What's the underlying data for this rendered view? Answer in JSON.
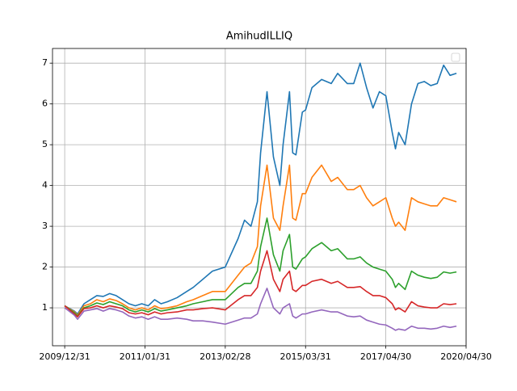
{
  "chart_data": {
    "type": "line",
    "title": "AmihudILLIQ",
    "x": [
      0,
      3,
      4,
      6,
      8,
      10,
      12,
      14,
      16,
      18,
      20,
      22,
      24,
      26,
      28,
      30,
      32,
      35,
      38,
      40,
      43,
      46,
      50,
      54,
      56,
      58,
      60,
      61,
      63,
      65,
      67,
      68,
      70,
      71,
      72,
      74,
      75,
      77,
      80,
      83,
      85,
      88,
      90,
      92,
      94,
      96,
      98,
      100,
      102,
      103,
      104,
      106,
      108,
      110,
      112,
      114,
      116,
      118,
      120,
      122
    ],
    "series": [
      {
        "color": "#1f77b4",
        "values": [
          1.05,
          0.92,
          0.85,
          1.1,
          1.2,
          1.3,
          1.28,
          1.35,
          1.3,
          1.2,
          1.1,
          1.05,
          1.1,
          1.05,
          1.2,
          1.1,
          1.15,
          1.25,
          1.4,
          1.5,
          1.7,
          1.9,
          2.0,
          2.7,
          3.15,
          3.0,
          3.6,
          4.8,
          6.3,
          4.7,
          4.0,
          5.0,
          6.3,
          4.8,
          4.75,
          5.8,
          5.85,
          6.4,
          6.6,
          6.5,
          6.75,
          6.5,
          6.5,
          7.0,
          6.4,
          5.9,
          6.3,
          6.2,
          5.3,
          4.9,
          5.3,
          5.0,
          6.0,
          6.5,
          6.55,
          6.45,
          6.5,
          6.95,
          6.7,
          6.75
        ]
      },
      {
        "color": "#ff7f0e",
        "values": [
          1.05,
          0.9,
          0.82,
          1.05,
          1.1,
          1.2,
          1.15,
          1.22,
          1.18,
          1.1,
          1.0,
          0.95,
          1.0,
          0.95,
          1.05,
          0.98,
          1.0,
          1.05,
          1.15,
          1.2,
          1.3,
          1.4,
          1.4,
          1.8,
          2.0,
          2.1,
          2.5,
          3.5,
          4.5,
          3.2,
          2.9,
          3.5,
          4.5,
          3.2,
          3.15,
          3.8,
          3.8,
          4.2,
          4.5,
          4.1,
          4.2,
          3.9,
          3.9,
          4.0,
          3.7,
          3.5,
          3.6,
          3.7,
          3.2,
          3.0,
          3.1,
          2.9,
          3.7,
          3.6,
          3.55,
          3.5,
          3.5,
          3.7,
          3.65,
          3.6
        ]
      },
      {
        "color": "#2ca02c",
        "values": [
          1.05,
          0.88,
          0.8,
          1.0,
          1.05,
          1.12,
          1.08,
          1.15,
          1.1,
          1.05,
          0.95,
          0.9,
          0.95,
          0.9,
          0.98,
          0.92,
          0.95,
          1.0,
          1.05,
          1.1,
          1.15,
          1.2,
          1.2,
          1.5,
          1.6,
          1.6,
          1.9,
          2.5,
          3.2,
          2.3,
          1.9,
          2.4,
          2.8,
          2.0,
          1.95,
          2.2,
          2.25,
          2.45,
          2.6,
          2.4,
          2.45,
          2.2,
          2.2,
          2.25,
          2.1,
          2.0,
          1.95,
          1.9,
          1.7,
          1.5,
          1.6,
          1.45,
          1.9,
          1.8,
          1.75,
          1.72,
          1.75,
          1.88,
          1.85,
          1.88
        ]
      },
      {
        "color": "#d62728",
        "values": [
          1.05,
          0.85,
          0.78,
          0.98,
          1.0,
          1.05,
          1.0,
          1.05,
          1.02,
          0.98,
          0.88,
          0.85,
          0.88,
          0.83,
          0.9,
          0.85,
          0.88,
          0.9,
          0.95,
          0.95,
          0.98,
          1.0,
          0.95,
          1.2,
          1.3,
          1.3,
          1.5,
          1.9,
          2.4,
          1.7,
          1.4,
          1.7,
          1.9,
          1.45,
          1.4,
          1.55,
          1.55,
          1.65,
          1.7,
          1.6,
          1.65,
          1.5,
          1.5,
          1.52,
          1.4,
          1.3,
          1.3,
          1.25,
          1.1,
          0.95,
          1.0,
          0.9,
          1.15,
          1.05,
          1.02,
          1.0,
          1.0,
          1.1,
          1.08,
          1.1
        ]
      },
      {
        "color": "#9467bd",
        "values": [
          1.0,
          0.82,
          0.72,
          0.92,
          0.95,
          0.98,
          0.92,
          0.98,
          0.95,
          0.9,
          0.8,
          0.75,
          0.78,
          0.72,
          0.78,
          0.72,
          0.72,
          0.75,
          0.72,
          0.68,
          0.68,
          0.65,
          0.6,
          0.7,
          0.75,
          0.75,
          0.85,
          1.1,
          1.48,
          1.0,
          0.85,
          1.0,
          1.1,
          0.8,
          0.75,
          0.85,
          0.85,
          0.9,
          0.95,
          0.9,
          0.9,
          0.8,
          0.78,
          0.8,
          0.7,
          0.65,
          0.6,
          0.58,
          0.5,
          0.45,
          0.48,
          0.45,
          0.55,
          0.5,
          0.5,
          0.48,
          0.5,
          0.55,
          0.52,
          0.55
        ]
      }
    ],
    "xlim": [
      -3.8,
      125
    ],
    "xticks": [
      {
        "value": 0,
        "label": "2009/12/31"
      },
      {
        "value": 25,
        "label": "2011/01/31"
      },
      {
        "value": 50,
        "label": "2013/02/28"
      },
      {
        "value": 75,
        "label": "2015/03/31"
      },
      {
        "value": 100,
        "label": "2017/04/30"
      },
      {
        "value": 125,
        "label": "2020/04/30"
      }
    ],
    "ylim": [
      0.07,
      7.36
    ],
    "yticks": [
      1,
      2,
      3,
      4,
      5,
      6,
      7
    ],
    "grid": true,
    "legend": "upper right"
  }
}
